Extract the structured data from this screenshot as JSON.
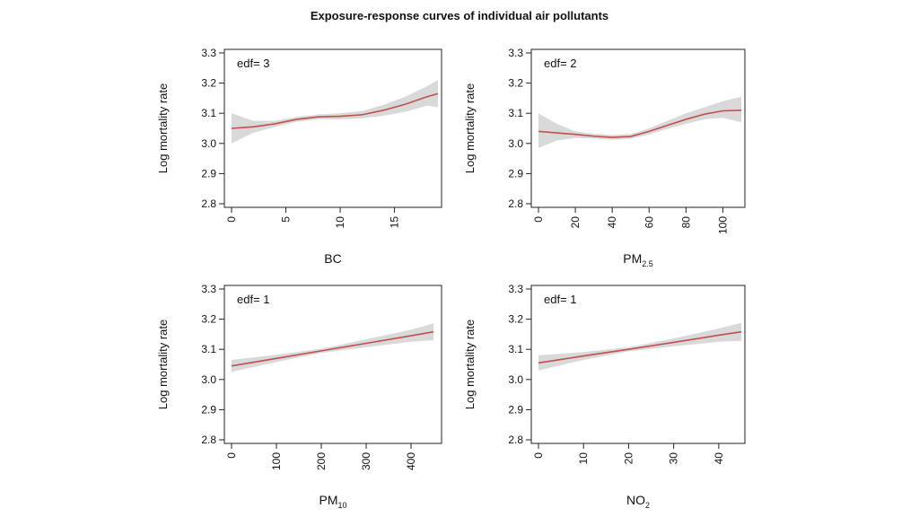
{
  "title": "Exposure-response curves of individual air pollutants",
  "chart_data": [
    {
      "type": "line",
      "annotation": "edf= 3",
      "xlabel": "BC",
      "ylabel": "Log mortality rate",
      "xlim": [
        0,
        19
      ],
      "ylim": [
        2.8,
        3.3
      ],
      "xticks": [
        0,
        5,
        10,
        15
      ],
      "yticks": [
        2.8,
        2.9,
        3.0,
        3.1,
        3.2,
        3.3
      ],
      "x": [
        0,
        2,
        4,
        6,
        8,
        10,
        12,
        14,
        16,
        18,
        19
      ],
      "y": [
        3.05,
        3.055,
        3.065,
        3.08,
        3.088,
        3.09,
        3.095,
        3.11,
        3.13,
        3.155,
        3.165
      ],
      "ci_lower": [
        3.0,
        3.035,
        3.055,
        3.072,
        3.08,
        3.08,
        3.083,
        3.092,
        3.105,
        3.125,
        3.12
      ],
      "ci_upper": [
        3.1,
        3.075,
        3.075,
        3.088,
        3.096,
        3.1,
        3.107,
        3.128,
        3.155,
        3.19,
        3.21
      ]
    },
    {
      "type": "line",
      "annotation": "edf= 2",
      "xlabel": "PM",
      "xlabel_sub": "2.5",
      "ylabel": "Log mortality rate",
      "xlim": [
        0,
        110
      ],
      "ylim": [
        2.8,
        3.3
      ],
      "xticks": [
        0,
        20,
        40,
        60,
        80,
        100
      ],
      "yticks": [
        2.8,
        2.9,
        3.0,
        3.1,
        3.2,
        3.3
      ],
      "x": [
        0,
        10,
        20,
        30,
        40,
        50,
        60,
        70,
        80,
        90,
        100,
        110
      ],
      "y": [
        3.04,
        3.035,
        3.03,
        3.024,
        3.02,
        3.023,
        3.04,
        3.06,
        3.08,
        3.097,
        3.108,
        3.11
      ],
      "ci_lower": [
        2.985,
        3.01,
        3.018,
        3.016,
        3.012,
        3.015,
        3.03,
        3.048,
        3.065,
        3.08,
        3.085,
        3.07
      ],
      "ci_upper": [
        3.1,
        3.065,
        3.04,
        3.032,
        3.028,
        3.031,
        3.05,
        3.075,
        3.1,
        3.12,
        3.14,
        3.155
      ]
    },
    {
      "type": "line",
      "annotation": "edf= 1",
      "xlabel": "PM",
      "xlabel_sub": "10",
      "ylabel": "Log mortality rate",
      "xlim": [
        0,
        460
      ],
      "ylim": [
        2.8,
        3.3
      ],
      "xticks": [
        0,
        100,
        200,
        300,
        400
      ],
      "yticks": [
        2.8,
        2.9,
        3.0,
        3.1,
        3.2,
        3.3
      ],
      "x": [
        0,
        100,
        200,
        300,
        400,
        450
      ],
      "y": [
        3.045,
        3.07,
        3.095,
        3.12,
        3.145,
        3.158
      ],
      "ci_lower": [
        3.025,
        3.058,
        3.088,
        3.107,
        3.125,
        3.13
      ],
      "ci_upper": [
        3.065,
        3.082,
        3.102,
        3.133,
        3.165,
        3.186
      ]
    },
    {
      "type": "line",
      "annotation": "edf= 1",
      "xlabel": "NO",
      "xlabel_sub": "2",
      "ylabel": "Log mortality rate",
      "xlim": [
        0,
        45
      ],
      "ylim": [
        2.8,
        3.3
      ],
      "xticks": [
        0,
        10,
        20,
        30,
        40
      ],
      "yticks": [
        2.8,
        2.9,
        3.0,
        3.1,
        3.2,
        3.3
      ],
      "x": [
        0,
        10,
        20,
        30,
        40,
        45
      ],
      "y": [
        3.055,
        3.078,
        3.1,
        3.123,
        3.147,
        3.158
      ],
      "ci_lower": [
        3.03,
        3.065,
        3.093,
        3.11,
        3.125,
        3.128
      ],
      "ci_upper": [
        3.08,
        3.091,
        3.107,
        3.136,
        3.169,
        3.188
      ]
    }
  ]
}
